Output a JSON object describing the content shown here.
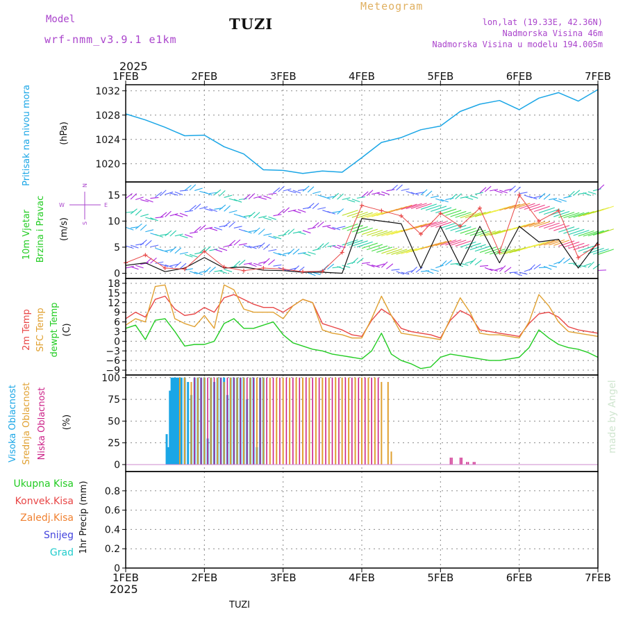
{
  "header": {
    "model_label": "Model",
    "model_name": "wrf-nmm_v3.9.1 e1km",
    "station": "TUZI",
    "product": "Meteogram",
    "coords": "lon,lat (19.33E, 42.36N)",
    "elevation": "Nadmorska Visina 46m",
    "model_elevation": "Nadmorska Visina u modelu 194.005m",
    "year_top": "2025",
    "year_bottom": "2025",
    "footer_station": "TUZI",
    "watermark": "made by Angel"
  },
  "colors": {
    "pressure": "#1aa6e6",
    "wind_label": "#22cc22",
    "temp2m": "#e84545",
    "sfc": "#e0a030",
    "dewpt": "#22cc22",
    "visoka": "#1aa6e6",
    "srednja": "#e0a030",
    "niska": "#cc2288",
    "ukupna": "#22cc22",
    "konvek": "#e84545",
    "zaledj": "#f08030",
    "snijeg": "#4444dd",
    "grad": "#22cccc",
    "title_purple": "#aa44cc",
    "meteogram": "#e0b060"
  },
  "x_axis": {
    "ticks": [
      "1FEB",
      "2FEB",
      "3FEB",
      "4FEB",
      "5FEB",
      "6FEB",
      "7FEB"
    ]
  },
  "panels": {
    "pressure": {
      "label": "Pritisak na nivou mora",
      "unit": "(hPa)"
    },
    "wind": {
      "label1": "10m Vjetar",
      "label2": "Brzina i Pravac",
      "unit": "(m/s)",
      "compass_n": "N",
      "compass_s": "S",
      "compass_w": "W",
      "compass_e": "E"
    },
    "temp": {
      "label1": "2m Temp",
      "label2": "SFC Temp",
      "label3": "dewpt Temp",
      "unit": "(C)"
    },
    "cloud": {
      "label1": "Visoka Oblacnost",
      "label2": "Srednja Oblacnost",
      "label3": "Niska Oblacnost",
      "unit": "(%)"
    },
    "precip": {
      "label_ukupna": "Ukupna Kisa",
      "label_konvek": "Konvek.Kisa",
      "label_zaledj": "Zaledj.Kisa",
      "label_snijeg": "Snijeg",
      "label_grad": "Grad",
      "unit": "1hr Precip (mm)"
    }
  },
  "chart_data": [
    {
      "type": "line",
      "name": "pressure",
      "ylim": [
        1017.0,
        1033.0
      ],
      "yticks": [
        1020,
        1024,
        1028,
        1032
      ],
      "x_hours": [
        0,
        6,
        12,
        18,
        24,
        30,
        36,
        42,
        48,
        54,
        60,
        66,
        72,
        78,
        84,
        90,
        96,
        102,
        108,
        114,
        120,
        126,
        132,
        138,
        144
      ],
      "series": [
        {
          "values": [
            1028.2,
            1027.2,
            1026.0,
            1024.6,
            1024.7,
            1022.8,
            1021.6,
            1019.0,
            1018.9,
            1018.4,
            1018.8,
            1018.6,
            1021.0,
            1023.5,
            1024.3,
            1025.6,
            1026.2,
            1028.6,
            1029.8,
            1030.4,
            1028.9,
            1030.8,
            1031.7,
            1030.3,
            1032.2
          ]
        }
      ]
    },
    {
      "type": "line",
      "name": "wind_speed",
      "ylim": [
        -1.0,
        17.5
      ],
      "yticks": [
        0,
        5,
        10,
        15
      ],
      "x_hours": [
        0,
        6,
        12,
        18,
        24,
        30,
        36,
        42,
        48,
        54,
        60,
        66,
        72,
        78,
        84,
        90,
        96,
        102,
        108,
        114,
        120,
        126,
        132,
        138,
        144
      ],
      "series": [
        {
          "values": [
            1.5,
            2.0,
            0.3,
            1.0,
            3.0,
            1.0,
            1.2,
            0.6,
            0.5,
            0.2,
            0.2,
            0.0,
            10.5,
            10.0,
            9.5,
            1.0,
            9.0,
            1.5,
            9.0,
            2.0,
            9.0,
            6.0,
            6.5,
            1.0,
            6.0
          ]
        },
        {
          "values": [
            2.0,
            3.5,
            1.0,
            0.8,
            4.2,
            1.2,
            0.5,
            1.0,
            0.8,
            0.3,
            0.4,
            4.0,
            13.0,
            12.0,
            11.0,
            7.5,
            11.5,
            9.0,
            12.5,
            4.0,
            15.0,
            10.0,
            12.0,
            3.0,
            5.5
          ]
        }
      ]
    },
    {
      "type": "line",
      "name": "temperature",
      "ylim": [
        -10.5,
        19.5
      ],
      "yticks": [
        -9,
        -6,
        -3,
        0,
        3,
        6,
        9,
        12,
        15,
        18
      ],
      "x_hours": [
        0,
        3,
        6,
        9,
        12,
        15,
        18,
        21,
        24,
        27,
        30,
        33,
        36,
        39,
        42,
        45,
        48,
        51,
        54,
        57,
        60,
        63,
        66,
        69,
        72,
        75,
        78,
        81,
        84,
        87,
        90,
        93,
        96,
        99,
        102,
        105,
        108,
        111,
        114,
        117,
        120,
        123,
        126,
        129,
        132,
        135,
        138,
        141,
        144
      ],
      "series": [
        {
          "name": "2m Temp",
          "values": [
            7.0,
            9.0,
            7.5,
            13.0,
            14.0,
            10.0,
            8.0,
            8.5,
            10.5,
            9.0,
            13.5,
            14.5,
            13.0,
            11.5,
            10.5,
            10.5,
            9.0,
            11.0,
            13.0,
            12.0,
            5.5,
            4.5,
            3.5,
            2.0,
            1.5,
            6.5,
            10.0,
            8.0,
            4.0,
            3.0,
            2.5,
            2.0,
            1.0,
            6.5,
            9.5,
            8.0,
            3.5,
            3.0,
            2.5,
            2.0,
            1.5,
            5.5,
            8.5,
            9.0,
            7.5,
            4.5,
            3.5,
            3.0,
            2.5
          ]
        },
        {
          "name": "SFC Temp",
          "values": [
            5.0,
            7.0,
            6.0,
            17.0,
            17.5,
            7.0,
            5.5,
            4.5,
            8.0,
            4.0,
            17.5,
            16.0,
            10.0,
            9.0,
            9.0,
            9.0,
            7.0,
            11.0,
            13.0,
            12.0,
            3.5,
            2.5,
            2.0,
            1.0,
            1.0,
            7.0,
            14.0,
            8.0,
            2.5,
            2.0,
            1.5,
            1.0,
            0.5,
            7.0,
            13.5,
            9.0,
            2.5,
            2.0,
            2.0,
            1.5,
            1.0,
            6.0,
            14.5,
            11.0,
            6.0,
            3.0,
            2.5,
            2.0,
            1.5
          ]
        },
        {
          "name": "dewpt Temp",
          "values": [
            4.0,
            5.0,
            0.5,
            6.5,
            7.0,
            3.0,
            -1.5,
            -1.0,
            -1.0,
            0.0,
            5.5,
            7.0,
            4.0,
            4.0,
            5.0,
            6.0,
            2.0,
            -0.5,
            -1.5,
            -2.5,
            -3.0,
            -4.0,
            -4.5,
            -5.0,
            -5.5,
            -3.0,
            2.5,
            -4.0,
            -6.0,
            -7.0,
            -8.5,
            -8.0,
            -5.0,
            -4.0,
            -4.5,
            -5.0,
            -5.5,
            -6.0,
            -6.0,
            -5.5,
            -5.0,
            -2.0,
            3.5,
            1.0,
            -1.0,
            -2.0,
            -2.5,
            -3.5,
            -5.0
          ]
        }
      ]
    },
    {
      "type": "bar",
      "name": "cloud_cover",
      "ylim": [
        -8.0,
        103.0
      ],
      "yticks": [
        0,
        25,
        50,
        75,
        100
      ],
      "series": [
        {
          "name": "Visoka Oblacnost",
          "x_hours": [
            12.5,
            13.0,
            13.5,
            14.0,
            14.5,
            15.0,
            15.5,
            16.0,
            16.5,
            17.0,
            18,
            19,
            20,
            21,
            22,
            23,
            24,
            25,
            26,
            27,
            28,
            29,
            30,
            31,
            32,
            33,
            34,
            35,
            36,
            37,
            38,
            39,
            40,
            41,
            42
          ],
          "values": [
            35,
            20,
            85,
            100,
            100,
            100,
            100,
            100,
            100,
            100,
            100,
            95,
            80,
            100,
            100,
            100,
            100,
            30,
            100,
            95,
            100,
            100,
            100,
            80,
            100,
            100,
            100,
            100,
            100,
            75,
            100,
            100,
            20,
            100,
            100
          ]
        },
        {
          "name": "Srednja Oblacnost",
          "x_hours": [
            16.5,
            18,
            20,
            22,
            24,
            26,
            28,
            30,
            32,
            34,
            36,
            38,
            40,
            42,
            44,
            46,
            48,
            50,
            52,
            54,
            56,
            58,
            60,
            62,
            64,
            66,
            68,
            70,
            72,
            74,
            76,
            78,
            80,
            81
          ],
          "values": [
            100,
            100,
            95,
            100,
            100,
            100,
            100,
            95,
            100,
            100,
            100,
            100,
            100,
            100,
            100,
            100,
            100,
            100,
            100,
            100,
            100,
            100,
            100,
            100,
            100,
            100,
            100,
            100,
            100,
            100,
            100,
            95,
            95,
            15
          ]
        },
        {
          "name": "Niska Oblacnost",
          "x_hours": [
            21,
            23,
            25,
            27,
            29,
            31,
            33,
            35,
            37,
            39,
            41,
            43,
            45,
            47,
            49,
            51,
            53,
            55,
            57,
            59,
            61,
            63,
            65,
            67,
            69,
            71,
            73,
            75,
            77,
            99,
            99.5,
            102,
            102.5,
            104,
            104.5,
            106,
            106.5
          ],
          "values": [
            100,
            100,
            100,
            100,
            100,
            100,
            100,
            100,
            100,
            100,
            100,
            100,
            100,
            100,
            100,
            100,
            100,
            100,
            100,
            100,
            100,
            100,
            100,
            100,
            100,
            100,
            100,
            100,
            100,
            8,
            8,
            8,
            8,
            3,
            3,
            3,
            3
          ]
        }
      ]
    },
    {
      "type": "bar",
      "name": "precipitation",
      "ylim": [
        0.0,
        1.0
      ],
      "yticks": [
        0,
        0.2,
        0.4,
        0.6,
        0.8
      ],
      "series": []
    }
  ]
}
